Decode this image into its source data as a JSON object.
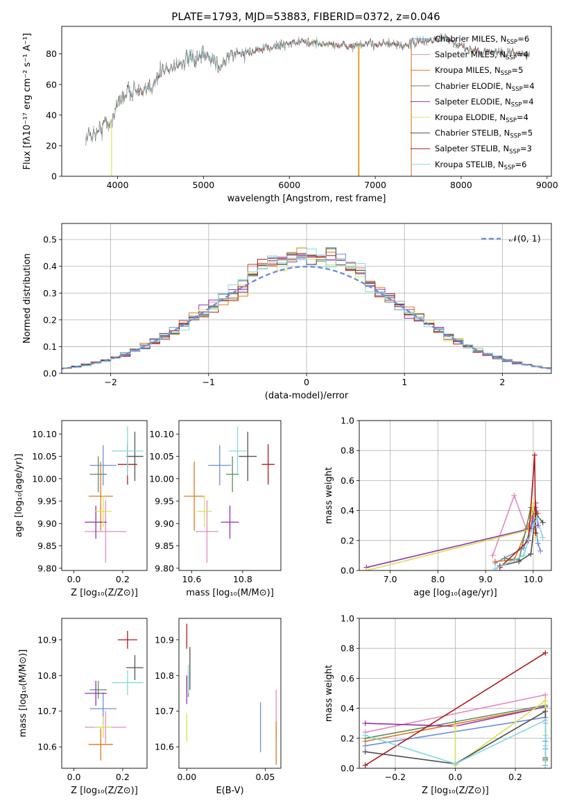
{
  "figure": {
    "title": "PLATE=1793, MJD=53883, FIBERID=0372, z=0.046"
  },
  "colors": {
    "Chabrier MILES": "#6a8fd8",
    "Salpeter MILES": "#e08ac0",
    "Kroupa MILES": "#e0761e",
    "Chabrier ELODIE": "#5c8c5c",
    "Salpeter ELODIE": "#9030b0",
    "Kroupa ELODIE": "#d8e050",
    "Chabrier STELIB": "#505050",
    "Salpeter STELIB": "#b01818",
    "Kroupa STELIB": "#80d8e0",
    "gauss": "#6a8fd8"
  },
  "chart_data": [
    {
      "id": "spectrum",
      "type": "line",
      "title": "PLATE=1793, MJD=53883, FIBERID=0372, z=0.046",
      "xlabel": "wavelength [Angstrom, rest frame]",
      "ylabel": "Flux [fλ10⁻¹⁷ erg cm⁻² s⁻¹ A⁻¹]",
      "xlim": [
        3350,
        9050
      ],
      "ylim": [
        0,
        98
      ],
      "xticks": [
        4000,
        5000,
        6000,
        7000,
        8000,
        9000
      ],
      "yticks": [
        0,
        20,
        40,
        60,
        80
      ],
      "legend_position": "right",
      "legend": [
        {
          "name": "Chabrier MILES",
          "nssp": "6"
        },
        {
          "name": "Salpeter MILES",
          "nssp": "4"
        },
        {
          "name": "Kroupa MILES",
          "nssp": "5"
        },
        {
          "name": "Chabrier ELODIE",
          "nssp": "4"
        },
        {
          "name": "Salpeter ELODIE",
          "nssp": "4"
        },
        {
          "name": "Kroupa ELODIE",
          "nssp": "4"
        },
        {
          "name": "Chabrier STELIB",
          "nssp": "5"
        },
        {
          "name": "Salpeter STELIB",
          "nssp": "3"
        },
        {
          "name": "Kroupa STELIB",
          "nssp": "6"
        }
      ],
      "continuum": {
        "x": [
          3630,
          3700,
          3800,
          3850,
          3900,
          3950,
          4000,
          4100,
          4200,
          4300,
          4400,
          4500,
          4600,
          4700,
          4800,
          4900,
          5000,
          5100,
          5200,
          5300,
          5500,
          5700,
          5900,
          6100,
          6300,
          6500,
          6700,
          6900,
          7100,
          7300,
          7500,
          7700,
          7800,
          7900,
          8000,
          8100,
          8200,
          8300,
          8400,
          8500,
          8600,
          8700,
          8800
        ],
        "y": [
          25,
          28,
          30,
          36,
          33,
          40,
          47,
          55,
          57,
          53,
          60,
          68,
          71,
          73,
          76,
          76,
          78,
          77,
          72,
          79,
          81,
          83,
          86,
          88,
          87,
          86,
          85,
          86,
          87,
          85,
          88,
          89,
          91,
          87,
          85,
          83,
          82,
          81,
          82,
          80,
          81,
          80,
          79
        ]
      },
      "vertical_spikes": [
        {
          "x": 3930,
          "color": "Kroupa ELODIE"
        },
        {
          "x": 6800,
          "color": "Kroupa ELODIE"
        },
        {
          "x": 6810,
          "color": "Kroupa MILES"
        },
        {
          "x": 7420,
          "color": "Kroupa MILES"
        }
      ]
    },
    {
      "id": "residuals",
      "type": "histogram",
      "xlabel": "(data-model)/error",
      "ylabel": "Normed distribution",
      "xlim": [
        -2.5,
        2.5
      ],
      "ylim": [
        0,
        0.56
      ],
      "xticks": [
        -2,
        -1,
        0,
        1,
        2
      ],
      "yticks": [
        0.0,
        0.1,
        0.2,
        0.3,
        0.4,
        0.5
      ],
      "grid": true,
      "legend": [
        {
          "name": "𝒩(0, 1)",
          "style": "dashed"
        }
      ],
      "legend_position": "top-right",
      "bin_width": 0.1
    },
    {
      "id": "age_vs_Z",
      "type": "errorbar",
      "xlabel": "Z [log₁₀(Z/Z⊙)]",
      "ylabel": "age  [log₁₀(age/yr)]",
      "xlim": [
        -0.05,
        0.3
      ],
      "ylim": [
        9.795,
        10.13
      ],
      "xticks": [
        0.0,
        0.2
      ],
      "yticks": [
        9.8,
        9.85,
        9.9,
        9.95,
        10.0,
        10.05,
        10.1
      ],
      "points": [
        {
          "s": "Chabrier MILES",
          "x": 0.12,
          "y": 10.03,
          "xerr": 0.055,
          "yerr": 0.045
        },
        {
          "s": "Salpeter MILES",
          "x": 0.13,
          "y": 9.882,
          "xerr": 0.085,
          "yerr": 0.07
        },
        {
          "s": "Kroupa MILES",
          "x": 0.11,
          "y": 9.961,
          "xerr": 0.05,
          "yerr": 0.077
        },
        {
          "s": "Chabrier ELODIE",
          "x": 0.1,
          "y": 10.01,
          "xerr": 0.035,
          "yerr": 0.04
        },
        {
          "s": "Salpeter ELODIE",
          "x": 0.09,
          "y": 9.903,
          "xerr": 0.045,
          "yerr": 0.037
        },
        {
          "s": "Kroupa ELODIE",
          "x": 0.12,
          "y": 9.927,
          "xerr": 0.035,
          "yerr": 0.035
        },
        {
          "s": "Chabrier STELIB",
          "x": 0.25,
          "y": 10.05,
          "xerr": 0.035,
          "yerr": 0.055
        },
        {
          "s": "Salpeter STELIB",
          "x": 0.22,
          "y": 10.032,
          "xerr": 0.04,
          "yerr": 0.045
        },
        {
          "s": "Kroupa STELIB",
          "x": 0.22,
          "y": 10.062,
          "xerr": 0.065,
          "yerr": 0.055
        }
      ]
    },
    {
      "id": "age_vs_mass",
      "type": "errorbar",
      "xlabel": "mass [log₁₀(M/M⊙)]",
      "ylabel": "",
      "xlim": [
        10.55,
        10.95
      ],
      "ylim": [
        9.795,
        10.13
      ],
      "xticks": [
        10.6,
        10.8
      ],
      "yticks": [
        9.8,
        9.85,
        9.9,
        9.95,
        10.0,
        10.05,
        10.1
      ],
      "points": [
        {
          "s": "Chabrier MILES",
          "x": 10.71,
          "y": 10.03,
          "xerr": 0.045,
          "yerr": 0.045
        },
        {
          "s": "Salpeter MILES",
          "x": 10.66,
          "y": 9.882,
          "xerr": 0.045,
          "yerr": 0.07
        },
        {
          "s": "Kroupa MILES",
          "x": 10.61,
          "y": 9.961,
          "xerr": 0.04,
          "yerr": 0.077
        },
        {
          "s": "Chabrier ELODIE",
          "x": 10.76,
          "y": 10.01,
          "xerr": 0.025,
          "yerr": 0.04
        },
        {
          "s": "Salpeter ELODIE",
          "x": 10.75,
          "y": 9.903,
          "xerr": 0.035,
          "yerr": 0.037
        },
        {
          "s": "Kroupa ELODIE",
          "x": 10.65,
          "y": 9.927,
          "xerr": 0.03,
          "yerr": 0.035
        },
        {
          "s": "Chabrier STELIB",
          "x": 10.82,
          "y": 10.05,
          "xerr": 0.035,
          "yerr": 0.055
        },
        {
          "s": "Salpeter STELIB",
          "x": 10.9,
          "y": 10.032,
          "xerr": 0.025,
          "yerr": 0.045
        },
        {
          "s": "Kroupa STELIB",
          "x": 10.78,
          "y": 10.062,
          "xerr": 0.035,
          "yerr": 0.055
        }
      ]
    },
    {
      "id": "weight_vs_age",
      "type": "line",
      "xlabel": "age  [log₁₀(age/yr)]",
      "ylabel": "mass weight",
      "xlim": [
        6.35,
        10.38
      ],
      "ylim": [
        0,
        1.0
      ],
      "xticks": [
        7,
        8,
        9,
        10
      ],
      "yticks": [
        0.0,
        0.2,
        0.4,
        0.6,
        0.8,
        1.0
      ],
      "grid": true,
      "series": [
        {
          "s": "Chabrier MILES",
          "x": [
            9.2,
            9.8,
            10.0,
            10.05,
            10.1,
            10.15
          ],
          "y": [
            0.05,
            0.15,
            0.33,
            0.3,
            0.18,
            0.13
          ]
        },
        {
          "s": "Salpeter MILES",
          "x": [
            9.15,
            9.6,
            9.85,
            10.05
          ],
          "y": [
            0.1,
            0.5,
            0.28,
            0.3
          ]
        },
        {
          "s": "Kroupa MILES",
          "x": [
            9.2,
            9.6,
            9.9,
            10.05,
            10.1
          ],
          "y": [
            0.06,
            0.07,
            0.3,
            0.42,
            0.38
          ]
        },
        {
          "s": "Chabrier ELODIE",
          "x": [
            9.4,
            9.7,
            9.95,
            10.05
          ],
          "y": [
            0.08,
            0.07,
            0.42,
            0.35
          ]
        },
        {
          "s": "Salpeter ELODIE",
          "x": [
            6.5,
            9.95,
            10.05,
            10.1
          ],
          "y": [
            0.02,
            0.28,
            0.45,
            0.3
          ]
        },
        {
          "s": "Kroupa ELODIE",
          "x": [
            6.5,
            9.9,
            10.0,
            10.05
          ],
          "y": [
            0.0,
            0.27,
            0.45,
            0.22
          ]
        },
        {
          "s": "Chabrier STELIB",
          "x": [
            9.3,
            9.7,
            9.95,
            10.05,
            10.2
          ],
          "y": [
            0.03,
            0.06,
            0.11,
            0.38,
            0.32
          ]
        },
        {
          "s": "Salpeter STELIB",
          "x": [
            9.3,
            9.9,
            10.03,
            10.05
          ],
          "y": [
            0.02,
            0.2,
            0.77,
            0.25
          ]
        },
        {
          "s": "Kroupa STELIB",
          "x": [
            9.2,
            9.8,
            10.0,
            10.08,
            10.2
          ],
          "y": [
            0.01,
            0.1,
            0.3,
            0.35,
            0.22
          ]
        }
      ]
    },
    {
      "id": "mass_vs_Z",
      "type": "errorbar",
      "xlabel": "Z [log₁₀(Z/Z⊙)]",
      "ylabel": "mass [log₁₀(M/M⊙)]",
      "xlim": [
        -0.05,
        0.3
      ],
      "ylim": [
        10.54,
        10.96
      ],
      "xticks": [
        0.0,
        0.2
      ],
      "yticks": [
        10.6,
        10.7,
        10.8,
        10.9
      ],
      "points": [
        {
          "s": "Chabrier MILES",
          "x": 0.12,
          "y": 10.707,
          "xerr": 0.055,
          "yerr": 0.045
        },
        {
          "s": "Salpeter MILES",
          "x": 0.13,
          "y": 10.655,
          "xerr": 0.085,
          "yerr": 0.045
        },
        {
          "s": "Kroupa MILES",
          "x": 0.11,
          "y": 10.607,
          "xerr": 0.05,
          "yerr": 0.045
        },
        {
          "s": "Chabrier ELODIE",
          "x": 0.1,
          "y": 10.76,
          "xerr": 0.035,
          "yerr": 0.025
        },
        {
          "s": "Salpeter ELODIE",
          "x": 0.09,
          "y": 10.75,
          "xerr": 0.045,
          "yerr": 0.035
        },
        {
          "s": "Kroupa ELODIE",
          "x": 0.12,
          "y": 10.655,
          "xerr": 0.035,
          "yerr": 0.03
        },
        {
          "s": "Chabrier STELIB",
          "x": 0.25,
          "y": 10.822,
          "xerr": 0.035,
          "yerr": 0.035
        },
        {
          "s": "Salpeter STELIB",
          "x": 0.22,
          "y": 10.9,
          "xerr": 0.04,
          "yerr": 0.025
        },
        {
          "s": "Kroupa STELIB",
          "x": 0.22,
          "y": 10.78,
          "xerr": 0.065,
          "yerr": 0.035
        }
      ]
    },
    {
      "id": "mass_vs_ebv",
      "type": "errorbar",
      "xlabel": "E(B-V)",
      "ylabel": "",
      "xlim": [
        -0.005,
        0.06
      ],
      "ylim": [
        10.54,
        10.96
      ],
      "xticks": [
        0.0,
        0.05
      ],
      "yticks": [
        10.6,
        10.7,
        10.8,
        10.9
      ],
      "points": [
        {
          "s": "Chabrier MILES",
          "x": 0.047,
          "y": 10.655,
          "xerr": 0,
          "yerr": 0.07
        },
        {
          "s": "Salpeter MILES",
          "x": 0.057,
          "y": 10.69,
          "xerr": 0,
          "yerr": 0.07
        },
        {
          "s": "Kroupa MILES",
          "x": 0.057,
          "y": 10.61,
          "xerr": 0,
          "yerr": 0.06
        },
        {
          "s": "Chabrier ELODIE",
          "x": 0.001,
          "y": 10.77,
          "xerr": 0,
          "yerr": 0.03
        },
        {
          "s": "Salpeter ELODIE",
          "x": 0.0,
          "y": 10.76,
          "xerr": 0,
          "yerr": 0.04
        },
        {
          "s": "Kroupa ELODIE",
          "x": 0.0,
          "y": 10.655,
          "xerr": 0,
          "yerr": 0.04
        },
        {
          "s": "Chabrier STELIB",
          "x": 0.002,
          "y": 10.82,
          "xerr": 0,
          "yerr": 0.06
        },
        {
          "s": "Salpeter STELIB",
          "x": 0.0,
          "y": 10.91,
          "xerr": 0,
          "yerr": 0.035
        },
        {
          "s": "Kroupa STELIB",
          "x": 0.001,
          "y": 10.79,
          "xerr": 0,
          "yerr": 0.04
        }
      ]
    },
    {
      "id": "weight_vs_Z",
      "type": "line",
      "xlabel": "Z [log₁₀(Z/Z⊙)]",
      "ylabel": "mass weight",
      "xlim": [
        -0.32,
        0.32
      ],
      "ylim": [
        0,
        1.0
      ],
      "xticks": [
        -0.2,
        0.0,
        0.2
      ],
      "yticks": [
        0.0,
        0.2,
        0.4,
        0.6,
        0.8,
        1.0
      ],
      "grid": true,
      "series": [
        {
          "s": "Chabrier MILES",
          "x": [
            -0.3,
            0.3,
            0.3,
            0.3
          ],
          "y": [
            0.15,
            0.34,
            0.18,
            0.13
          ]
        },
        {
          "s": "Salpeter MILES",
          "x": [
            -0.3,
            0.3,
            0.3
          ],
          "y": [
            0.24,
            0.49,
            0.3
          ]
        },
        {
          "s": "Kroupa MILES",
          "x": [
            -0.3,
            0.3,
            0.3,
            0.3
          ],
          "y": [
            0.18,
            0.41,
            0.07,
            0.05
          ]
        },
        {
          "s": "Chabrier ELODIE",
          "x": [
            -0.3,
            0.0,
            0.3,
            0.3
          ],
          "y": [
            0.2,
            0.31,
            0.42,
            0.07
          ]
        },
        {
          "s": "Salpeter ELODIE",
          "x": [
            -0.3,
            0.0,
            0.3,
            0.3
          ],
          "y": [
            0.3,
            0.28,
            0.41,
            0.02
          ]
        },
        {
          "s": "Kroupa ELODIE",
          "x": [
            0.0,
            0.0,
            0.3,
            0.3
          ],
          "y": [
            0.28,
            0.02,
            0.45,
            0.22
          ]
        },
        {
          "s": "Chabrier STELIB",
          "x": [
            -0.3,
            0.0,
            0.3,
            0.3
          ],
          "y": [
            0.11,
            0.03,
            0.38,
            0.06
          ]
        },
        {
          "s": "Salpeter STELIB",
          "x": [
            -0.3,
            0.3
          ],
          "y": [
            0.02,
            0.77
          ]
        },
        {
          "s": "Kroupa STELIB",
          "x": [
            -0.3,
            0.0,
            0.3,
            0.3,
            0.3
          ],
          "y": [
            0.22,
            0.03,
            0.32,
            0.15,
            0.02
          ]
        }
      ]
    }
  ]
}
